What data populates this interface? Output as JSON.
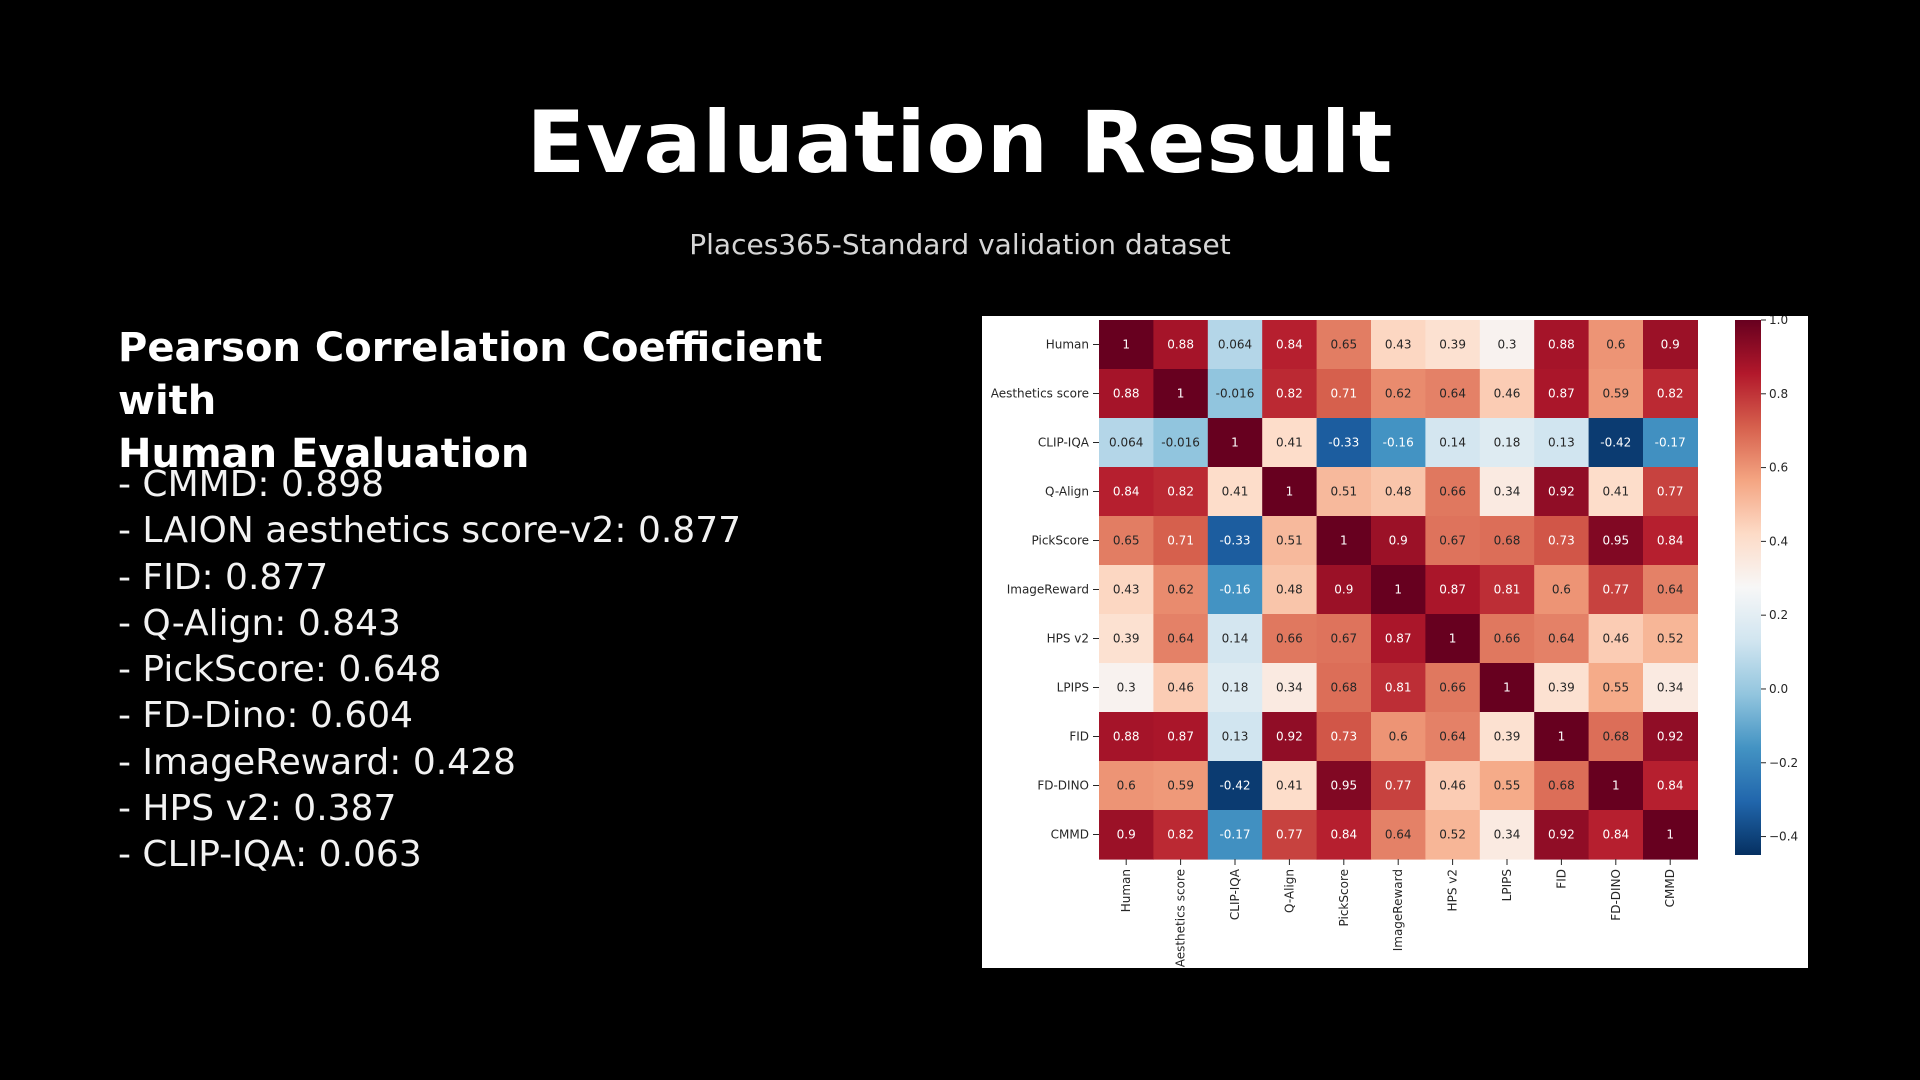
{
  "slide": {
    "title": "Evaluation Result",
    "subtitle": "Places365-Standard validation dataset",
    "heading_line1": "Pearson Correlation Coefficient with",
    "heading_line2": "Human Evaluation",
    "metrics": [
      "- CMMD: 0.898",
      "- LAION aesthetics score-v2: 0.877",
      "- FID: 0.877",
      "- Q-Align: 0.843",
      "- PickScore: 0.648",
      "- FD-Dino: 0.604",
      "- ImageReward: 0.428",
      "- HPS v2: 0.387",
      "- CLIP-IQA: 0.063"
    ]
  },
  "chart_data": {
    "type": "heatmap",
    "title": "",
    "labels": [
      "Human",
      "Aesthetics score",
      "CLIP-IQA",
      "Q-Align",
      "PickScore",
      "ImageReward",
      "HPS v2",
      "LPIPS",
      "FID",
      "FD-DINO",
      "CMMD"
    ],
    "matrix": [
      [
        "1",
        "0.88",
        "0.064",
        "0.84",
        "0.65",
        "0.43",
        "0.39",
        "0.3",
        "0.88",
        "0.6",
        "0.9"
      ],
      [
        "0.88",
        "1",
        "-0.016",
        "0.82",
        "0.71",
        "0.62",
        "0.64",
        "0.46",
        "0.87",
        "0.59",
        "0.82"
      ],
      [
        "0.064",
        "-0.016",
        "1",
        "0.41",
        "-0.33",
        "-0.16",
        "0.14",
        "0.18",
        "0.13",
        "-0.42",
        "-0.17"
      ],
      [
        "0.84",
        "0.82",
        "0.41",
        "1",
        "0.51",
        "0.48",
        "0.66",
        "0.34",
        "0.92",
        "0.41",
        "0.77"
      ],
      [
        "0.65",
        "0.71",
        "-0.33",
        "0.51",
        "1",
        "0.9",
        "0.67",
        "0.68",
        "0.73",
        "0.95",
        "0.84"
      ],
      [
        "0.43",
        "0.62",
        "-0.16",
        "0.48",
        "0.9",
        "1",
        "0.87",
        "0.81",
        "0.6",
        "0.77",
        "0.64"
      ],
      [
        "0.39",
        "0.64",
        "0.14",
        "0.66",
        "0.67",
        "0.87",
        "1",
        "0.66",
        "0.64",
        "0.46",
        "0.52"
      ],
      [
        "0.3",
        "0.46",
        "0.18",
        "0.34",
        "0.68",
        "0.81",
        "0.66",
        "1",
        "0.39",
        "0.55",
        "0.34"
      ],
      [
        "0.88",
        "0.87",
        "0.13",
        "0.92",
        "0.73",
        "0.6",
        "0.64",
        "0.39",
        "1",
        "0.68",
        "0.92"
      ],
      [
        "0.6",
        "0.59",
        "-0.42",
        "0.41",
        "0.95",
        "0.77",
        "0.46",
        "0.55",
        "0.68",
        "1",
        "0.84"
      ],
      [
        "0.9",
        "0.82",
        "-0.17",
        "0.77",
        "0.84",
        "0.64",
        "0.52",
        "0.34",
        "0.92",
        "0.84",
        "1"
      ]
    ],
    "colorbar": {
      "range": [
        -0.45,
        1.0
      ],
      "ticks": [
        "1.0",
        "0.8",
        "0.6",
        "0.4",
        "0.2",
        "0.0",
        "−0.2",
        "−0.4"
      ],
      "colormap": "RdBu_r",
      "low_color": "#053061",
      "mid_color": "#f7f7f7",
      "high_color": "#67001f"
    },
    "grid": false,
    "legend": "colorbar-right"
  }
}
